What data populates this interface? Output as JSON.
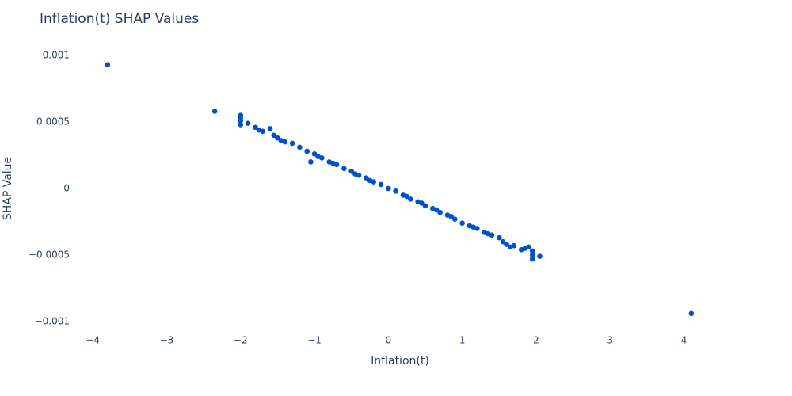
{
  "chart_data": {
    "type": "scatter",
    "title": "Inflation(t) SHAP Values",
    "x_label": "Inflation(t)",
    "y_label": "SHAP Value",
    "color": "#0052cc",
    "grid": false,
    "xlim": [
      -4.72,
      4.82
    ],
    "ylim": [
      -0.00106,
      0.00106
    ],
    "xticks": [
      {
        "value": -4,
        "label": "−4"
      },
      {
        "value": -3,
        "label": "−3"
      },
      {
        "value": -2,
        "label": "−2"
      },
      {
        "value": -1,
        "label": "−1"
      },
      0,
      1,
      2,
      3,
      4
    ],
    "yticks": [
      {
        "value": -0.001,
        "label": "−0.001"
      },
      {
        "value": -0.0005,
        "label": "−0.0005"
      },
      0,
      0.0005,
      0.001
    ],
    "x": [
      -3.8,
      -2.35,
      -2,
      -2,
      -2,
      -2,
      -1.9,
      -1.8,
      -1.75,
      -1.7,
      -1.6,
      -1.55,
      -1.5,
      -1.45,
      -1.4,
      -1.3,
      -1.2,
      -1.1,
      -1.05,
      -1.0,
      -0.95,
      -0.9,
      -0.8,
      -0.75,
      -0.7,
      -0.6,
      -0.5,
      -0.45,
      -0.4,
      -0.3,
      -0.25,
      -0.2,
      -0.1,
      0,
      0.1,
      0.2,
      0.25,
      0.3,
      0.4,
      0.45,
      0.5,
      0.6,
      0.65,
      0.7,
      0.8,
      0.85,
      0.9,
      1.0,
      1.1,
      1.15,
      1.2,
      1.3,
      1.35,
      1.4,
      1.5,
      1.55,
      1.6,
      1.65,
      1.7,
      1.8,
      1.85,
      1.9,
      1.95,
      1.95,
      1.95,
      2.05,
      4.1
    ],
    "values": [
      0.00093,
      0.00058,
      0.00055,
      0.00053,
      0.00051,
      0.00048,
      0.00049,
      0.00046,
      0.00044,
      0.00043,
      0.00045,
      0.0004,
      0.00038,
      0.00036,
      0.00035,
      0.00034,
      0.00031,
      0.00028,
      0.0002,
      0.00026,
      0.00024,
      0.00023,
      0.0002,
      0.00019,
      0.00018,
      0.00015,
      0.00013,
      0.00011,
      0.0001,
      8e-05,
      6e-05,
      5e-05,
      3e-05,
      0,
      -2e-05,
      -5e-05,
      -6e-05,
      -8e-05,
      -0.0001,
      -0.00011,
      -0.00013,
      -0.00015,
      -0.00016,
      -0.00018,
      -0.0002,
      -0.00021,
      -0.00023,
      -0.00026,
      -0.00028,
      -0.00029,
      -0.0003,
      -0.00033,
      -0.00034,
      -0.00035,
      -0.00037,
      -0.0004,
      -0.00042,
      -0.00044,
      -0.00043,
      -0.00046,
      -0.00045,
      -0.00044,
      -0.00047,
      -0.0005,
      -0.00053,
      -0.00051,
      -0.00094
    ]
  }
}
